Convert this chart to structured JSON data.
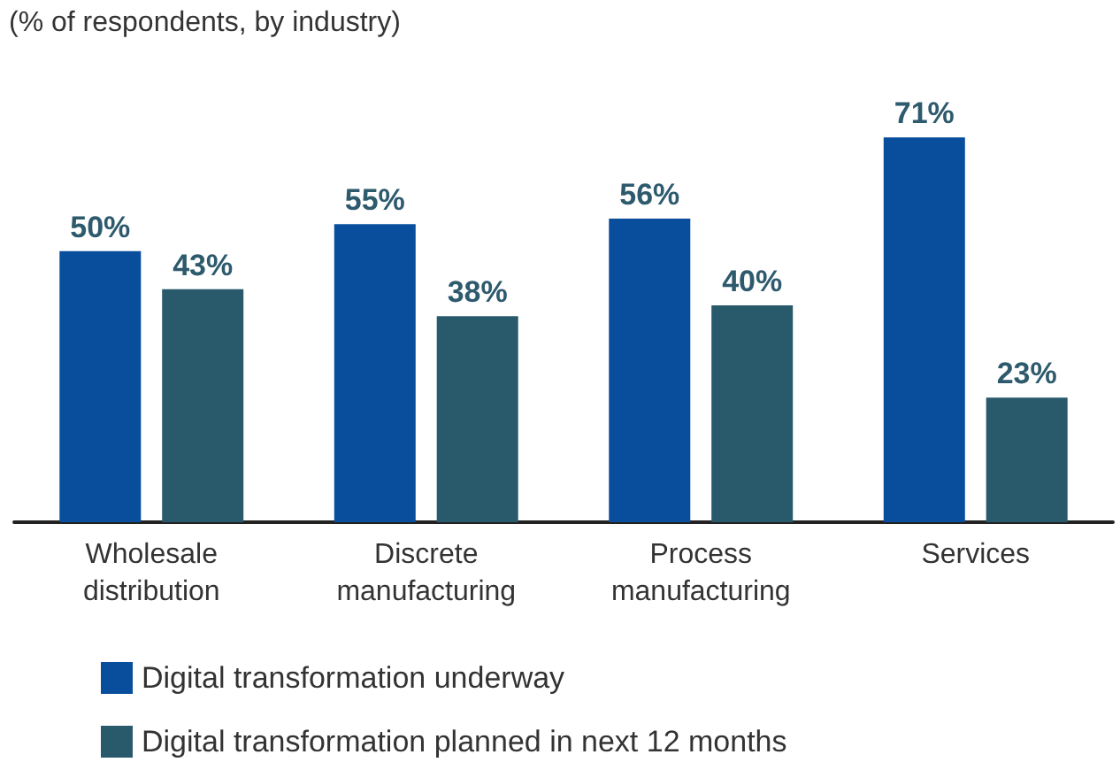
{
  "chart_data": {
    "type": "bar",
    "subtitle": "(% of respondents, by industry)",
    "categories": [
      "Wholesale\ndistribution",
      "Discrete\nmanufacturing",
      "Process\nmanufacturing",
      "Services"
    ],
    "series": [
      {
        "name": "Digital transformation underway",
        "color": "#084e9c",
        "values": [
          50,
          55,
          56,
          71
        ],
        "value_labels": [
          "50%",
          "55%",
          "56%",
          "71%"
        ]
      },
      {
        "name": "Digital transformation planned in next 12 months",
        "color": "#285a6c",
        "values": [
          43,
          38,
          40,
          23
        ],
        "value_labels": [
          "43%",
          "38%",
          "40%",
          "23%"
        ]
      }
    ],
    "legend": "bottom"
  }
}
